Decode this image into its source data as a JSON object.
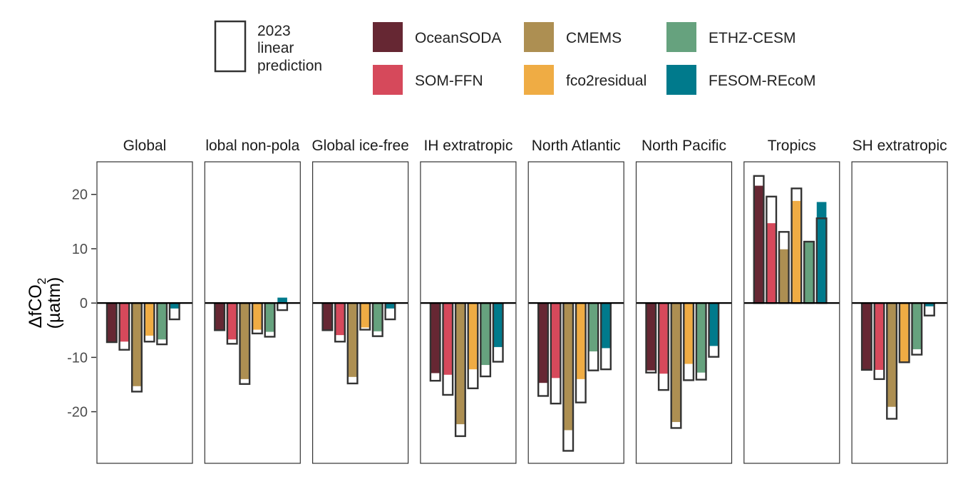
{
  "chart_data": {
    "type": "bar",
    "ylabel_main": "ΔfCO",
    "ylabel_sub": "2",
    "ylabel_unit": "(µatm)",
    "ylim": [
      -29.5,
      26
    ],
    "yticks": [
      20,
      10,
      0,
      -10,
      -20
    ],
    "ytick_labels": [
      "20",
      "10",
      "0",
      "-10",
      "-20"
    ],
    "grid": false,
    "legend_placement": "top",
    "outline_legend_label": [
      "2023",
      "linear",
      "prediction"
    ],
    "series": [
      {
        "name": "OceanSODA",
        "color": "#662733"
      },
      {
        "name": "SOM-FFN",
        "color": "#D6495B"
      },
      {
        "name": "CMEMS",
        "color": "#AD8F52"
      },
      {
        "name": "fco2residual",
        "color": "#EFAC44"
      },
      {
        "name": "ETHZ-CESM",
        "color": "#66A27E"
      },
      {
        "name": "FESOM-REcoM",
        "color": "#007A8C"
      }
    ],
    "panels": [
      {
        "title": "Global",
        "values": [
          -7.2,
          -7.1,
          -15.3,
          -6.0,
          -6.7,
          -1.0
        ],
        "predictions": [
          -7.2,
          -8.6,
          -16.3,
          -7.1,
          -7.6,
          -3.0
        ]
      },
      {
        "title": "lobal non-pola",
        "values": [
          -5.0,
          -6.7,
          -14.0,
          -4.9,
          -5.3,
          1.0
        ],
        "predictions": [
          -5.0,
          -7.5,
          -14.9,
          -5.6,
          -6.2,
          -1.3
        ]
      },
      {
        "title": "Global ice-free",
        "values": [
          -5.0,
          -5.9,
          -13.6,
          -4.5,
          -5.2,
          -1.0
        ],
        "predictions": [
          -5.0,
          -7.1,
          -14.8,
          -4.9,
          -6.1,
          -3.0
        ]
      },
      {
        "title": "IH extratropic",
        "values": [
          -12.9,
          -13.2,
          -22.3,
          -12.2,
          -11.4,
          -8.1
        ],
        "predictions": [
          -14.3,
          -16.9,
          -24.5,
          -15.7,
          -13.5,
          -10.8
        ]
      },
      {
        "title": "North Atlantic",
        "values": [
          -14.7,
          -13.8,
          -23.4,
          -14.0,
          -8.9,
          -8.3
        ],
        "predictions": [
          -17.1,
          -18.5,
          -27.2,
          -18.3,
          -12.4,
          -12.2
        ]
      },
      {
        "title": "North Pacific",
        "values": [
          -12.4,
          -13.0,
          -21.9,
          -11.2,
          -12.8,
          -7.9
        ],
        "predictions": [
          -12.8,
          -16.0,
          -23.0,
          -14.2,
          -14.1,
          -9.9
        ]
      },
      {
        "title": "Tropics",
        "values": [
          21.6,
          14.7,
          9.9,
          18.8,
          11.3,
          18.6
        ],
        "predictions": [
          23.4,
          19.6,
          13.1,
          21.1,
          11.3,
          15.6
        ]
      },
      {
        "title": "SH extratropic",
        "values": [
          -12.3,
          -12.3,
          -19.1,
          -10.9,
          -8.5,
          -0.6
        ],
        "predictions": [
          -12.3,
          -14.0,
          -21.3,
          -10.9,
          -9.5,
          -2.3
        ]
      }
    ]
  }
}
